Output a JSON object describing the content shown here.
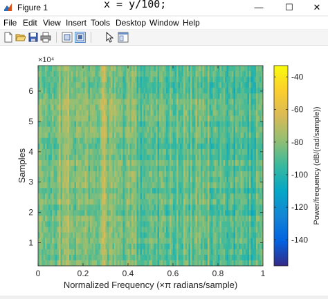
{
  "window": {
    "title": "Figure 1",
    "code_overlay": "x = y/100;",
    "min_glyph": "—",
    "max_glyph": "☐",
    "close_glyph": "✕"
  },
  "menu": [
    "File",
    "Edit",
    "View",
    "Insert",
    "Tools",
    "Desktop",
    "Window",
    "Help"
  ],
  "toolbar": {
    "icons": [
      "new-figure-icon",
      "open-file-icon",
      "save-icon",
      "print-icon",
      "hide-plot-tools-icon",
      "show-plot-tools-icon",
      "edit-plot-pointer-icon",
      "dock-icon"
    ]
  },
  "chart_data": {
    "type": "heatmap",
    "title": "",
    "xlabel": "Normalized Frequency (×π radians/sample)",
    "ylabel": "Samples",
    "xlim": [
      0,
      1
    ],
    "ylim": [
      2400,
      68400
    ],
    "x_ticks": [
      "0",
      "0.2",
      "0.4",
      "0.6",
      "0.8",
      "1"
    ],
    "y_ticks": [
      "1",
      "2",
      "3",
      "4",
      "5",
      "6"
    ],
    "y_exponent_label": "×10⁴",
    "colorbar": {
      "label": "Power/frequency (dB/(rad/sample))",
      "ticks": [
        "-40",
        "-60",
        "-80",
        "-100",
        "-120",
        "-140"
      ],
      "range": [
        -156,
        -33
      ],
      "colormap": "parula"
    },
    "colors": {
      "parula": [
        "#352a87",
        "#0363e1",
        "#1485d4",
        "#06a7c6",
        "#38b99e",
        "#92bf73",
        "#d9ba56",
        "#fcce2e",
        "#f9fb0e"
      ]
    }
  }
}
